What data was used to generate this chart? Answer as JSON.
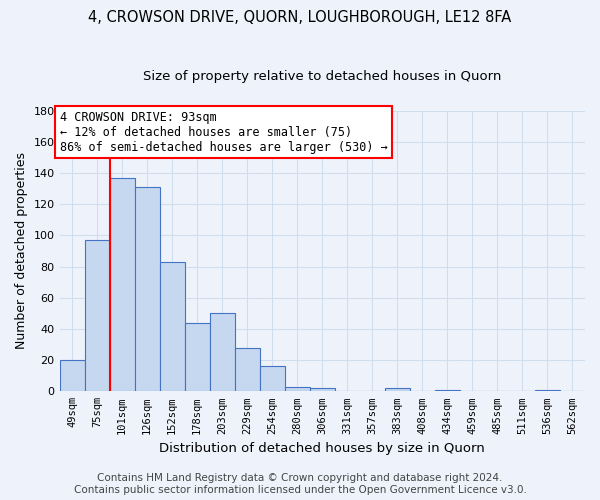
{
  "title": "4, CROWSON DRIVE, QUORN, LOUGHBOROUGH, LE12 8FA",
  "subtitle": "Size of property relative to detached houses in Quorn",
  "xlabel": "Distribution of detached houses by size in Quorn",
  "ylabel": "Number of detached properties",
  "footer_line1": "Contains HM Land Registry data © Crown copyright and database right 2024.",
  "footer_line2": "Contains public sector information licensed under the Open Government Licence v3.0.",
  "categories": [
    "49sqm",
    "75sqm",
    "101sqm",
    "126sqm",
    "152sqm",
    "178sqm",
    "203sqm",
    "229sqm",
    "254sqm",
    "280sqm",
    "306sqm",
    "331sqm",
    "357sqm",
    "383sqm",
    "408sqm",
    "434sqm",
    "459sqm",
    "485sqm",
    "511sqm",
    "536sqm",
    "562sqm"
  ],
  "values": [
    20,
    97,
    137,
    131,
    83,
    44,
    50,
    28,
    16,
    3,
    2,
    0,
    0,
    2,
    0,
    1,
    0,
    0,
    0,
    1,
    0
  ],
  "bar_color": "#c5d8f0",
  "bar_edge_color": "#4472c4",
  "annotation_line1": "4 CROWSON DRIVE: 93sqm",
  "annotation_line2": "← 12% of detached houses are smaller (75)",
  "annotation_line3": "86% of semi-detached houses are larger (530) →",
  "annotation_box_color": "white",
  "annotation_box_edge_color": "red",
  "vline_color": "red",
  "vline_x": 1.5,
  "ylim": [
    0,
    180
  ],
  "yticks": [
    0,
    20,
    40,
    60,
    80,
    100,
    120,
    140,
    160,
    180
  ],
  "background_color": "#eef3fb",
  "grid_color": "#d0dded",
  "title_fontsize": 10.5,
  "subtitle_fontsize": 9.5,
  "axis_label_fontsize": 9,
  "tick_fontsize": 7.5,
  "footer_fontsize": 7.5,
  "annotation_fontsize": 8.5
}
